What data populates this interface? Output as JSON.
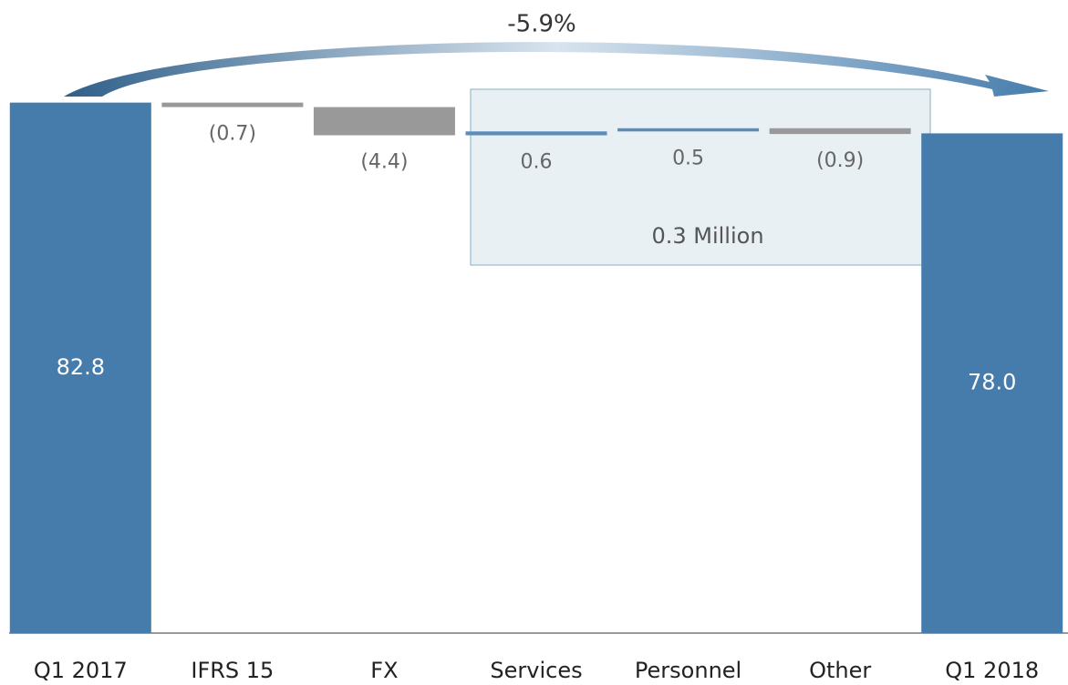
{
  "chart_data": {
    "type": "waterfall",
    "annotations": [
      "-5.9%",
      "0.3 Million"
    ],
    "categories": [
      "Q1 2017",
      "IFRS 15",
      "FX",
      "Services",
      "Personnel",
      "Other",
      "Q1 2018"
    ],
    "values": [
      82.8,
      -0.7,
      -4.4,
      0.6,
      0.5,
      -0.9,
      78.0
    ],
    "value_labels": [
      "82.8",
      "(0.7)",
      "(4.4)",
      "0.6",
      "0.5",
      "(0.9)",
      "78.0"
    ],
    "totals": [
      true,
      false,
      false,
      false,
      false,
      false,
      true
    ],
    "colors": [
      "#457cac",
      "#999999",
      "#999999",
      "#5b8cbc",
      "#5b8cbc",
      "#999999",
      "#457cac"
    ],
    "ylim": [
      0,
      90
    ]
  }
}
